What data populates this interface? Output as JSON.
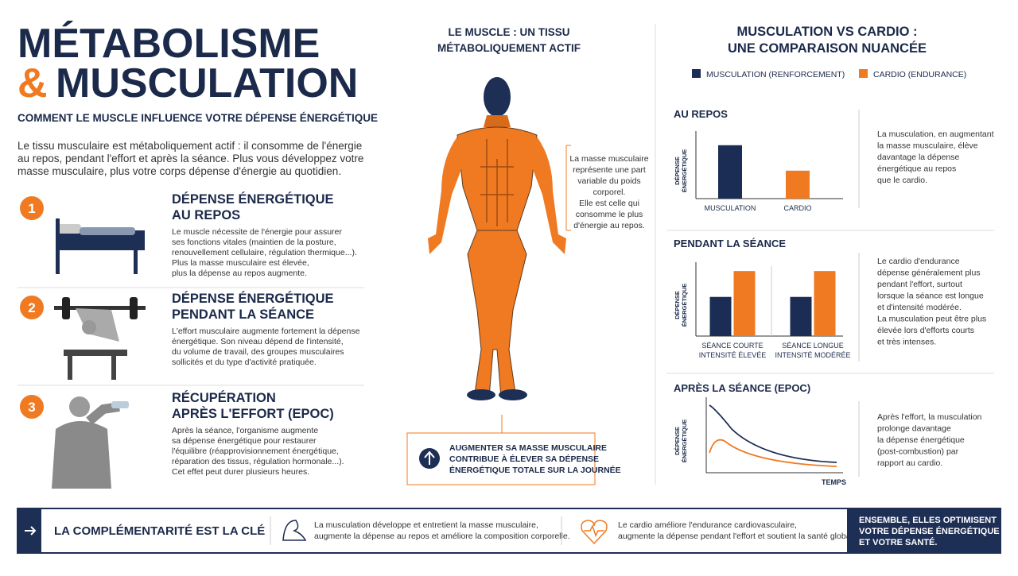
{
  "header": {
    "title_1": "MÉTABOLISME",
    "ampersand": "&",
    "title_2": "MUSCULATION",
    "subtitle": "COMMENT LE MUSCLE INFLUENCE VOTRE DÉPENSE ÉNERGÉTIQUE",
    "intro": [
      "Le tissu musculaire est métaboliquement actif : il consomme de l'énergie",
      "au repos, pendant l'effort et après la séance. Plus vous développez votre",
      "masse musculaire, plus votre corps dépense d'énergie au quotidien."
    ]
  },
  "items": [
    {
      "number": "1",
      "heading": [
        "DÉPENSE ÉNERGÉTIQUE",
        "AU REPOS"
      ],
      "body": [
        "Le muscle nécessite de l'énergie pour assurer",
        "ses fonctions vitales (maintien de la posture,",
        "renouvellement cellulaire, régulation thermique...).",
        "Plus la masse musculaire est élevée,",
        "plus la dépense au repos augmente."
      ]
    },
    {
      "number": "2",
      "heading": [
        "DÉPENSE ÉNERGÉTIQUE",
        "PENDANT LA SÉANCE"
      ],
      "body": [
        "L'effort musculaire augmente fortement la dépense",
        "énergétique. Son niveau dépend de l'intensité,",
        "du volume de travail, des groupes musculaires",
        "sollicités et du type d'activité pratiquée."
      ]
    },
    {
      "number": "3",
      "heading": [
        "RÉCUPÉRATION",
        "APRÈS L'EFFORT (EPOC)"
      ],
      "body": [
        "Après la séance, l'organisme augmente",
        "sa dépense énergétique pour restaurer",
        "l'équilibre (réapprovisionnement énergétique,",
        "réparation des tissus, régulation hormonale...).",
        "Cet effet peut durer plusieurs heures."
      ]
    }
  ],
  "center": {
    "title": [
      "LE MUSCLE : UN TISSU",
      "MÉTABOLIQUEMENT ACTIF"
    ],
    "note": [
      "La masse musculaire",
      "représente une part",
      "variable du poids",
      "corporel.",
      "Elle est celle qui",
      "consomme le plus",
      "d'énergie au repos."
    ],
    "callout": [
      "AUGMENTER SA MASSE MUSCULAIRE",
      "CONTRIBUE À ÉLEVER SA DÉPENSE",
      "ÉNERGÉTIQUE TOTALE SUR LA JOURNÉE"
    ]
  },
  "right": {
    "title": [
      "MUSCULATION VS CARDIO :",
      "UNE COMPARAISON NUANCÉE"
    ],
    "legend": [
      {
        "name": "MUSCULATION (RENFORCEMENT)",
        "color": "#1b2d55"
      },
      {
        "name": "CARDIO (ENDURANCE)",
        "color": "#f07a22"
      }
    ],
    "charts": [
      {
        "type": "bar",
        "title": "AU REPOS",
        "y_label": [
          "DÉPENSE",
          "ÉNERGÉTIQUE"
        ],
        "categories": [
          [
            "MUSCULATION"
          ],
          [
            "CARDIO"
          ]
        ],
        "values": [
          84,
          44
        ],
        "colors": [
          "#1b2d55",
          "#f07a22"
        ],
        "ylim": [
          0,
          100
        ],
        "note": [
          "La musculation, en augmentant",
          "la masse musculaire, élève",
          "davantage la dépense",
          "énergétique au repos",
          "que le cardio."
        ]
      },
      {
        "type": "bar",
        "title": "PENDANT LA SÉANCE",
        "y_label": [
          "DÉPENSE",
          "ÉNERGÉTIQUE"
        ],
        "categories": [
          [
            "SÉANCE COURTE",
            "INTENSITÉ ÉLEVÉE"
          ],
          [
            "SÉANCE LONGUE",
            "INTENSITÉ MODÉRÉE"
          ]
        ],
        "series": [
          {
            "color": "#1b2d55",
            "values": [
              56,
              56
            ]
          },
          {
            "color": "#f07a22",
            "values": [
              93,
              93
            ]
          }
        ],
        "ylim": [
          0,
          100
        ],
        "note": [
          "Le cardio d'endurance",
          "dépense généralement plus",
          "pendant l'effort, surtout",
          "lorsque la séance est longue",
          "et d'intensité modérée.",
          "La musculation peut être plus",
          "élevée lors d'efforts courts",
          "et très intenses."
        ]
      },
      {
        "type": "curve",
        "title": "APRÈS LA SÉANCE (EPOC)",
        "y_label": [
          "DÉPENSE",
          "ÉNERGÉTIQUE"
        ],
        "x_label": "TEMPS",
        "note": [
          "Après l'effort, la musculation",
          "prolonge davantage",
          "la dépense énergétique",
          "(post-combustion) par",
          "rapport au cardio."
        ]
      }
    ]
  },
  "footer": {
    "key": "LA COMPLÉMENTARITÉ EST LA CLÉ",
    "left": [
      "La musculation développe et entretient la masse musculaire,",
      "augmente la dépense au repos et améliore la composition corporelle."
    ],
    "middle": [
      "Le cardio améliore l'endurance cardiovasculaire,",
      "augmente la dépense pendant l'effort et soutient la santé globale."
    ],
    "conclusion": [
      "ENSEMBLE, ELLES OPTIMISENT",
      "VOTRE DÉPENSE ÉNERGÉTIQUE",
      "ET VOTRE SANTÉ."
    ]
  }
}
